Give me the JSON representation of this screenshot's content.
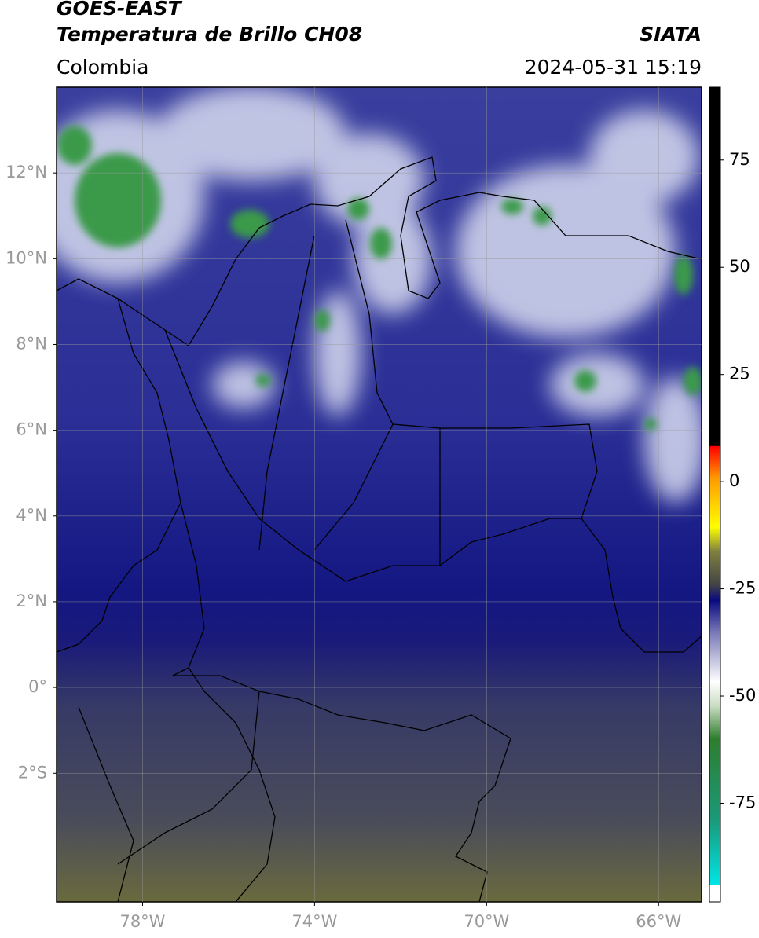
{
  "header": {
    "satellite": "GOES-EAST",
    "product": "Temperatura de Brillo CH08",
    "source": "SIATA",
    "region": "Colombia",
    "timestamp": "2024-05-31 15:19"
  },
  "map": {
    "lon_range": [
      -80,
      -65
    ],
    "lat_range": [
      -5,
      14
    ],
    "grid": true,
    "lon_ticks": [
      {
        "value": -78,
        "label": "78°W"
      },
      {
        "value": -74,
        "label": "74°W"
      },
      {
        "value": -70,
        "label": "70°W"
      },
      {
        "value": -66,
        "label": "66°W"
      }
    ],
    "lat_ticks": [
      {
        "value": 12,
        "label": "12°N"
      },
      {
        "value": 10,
        "label": "10°N"
      },
      {
        "value": 8,
        "label": "8°N"
      },
      {
        "value": 6,
        "label": "6°N"
      },
      {
        "value": 4,
        "label": "4°N"
      },
      {
        "value": 2,
        "label": "2°N"
      },
      {
        "value": 0,
        "label": "0°"
      },
      {
        "value": -2,
        "label": "2°S"
      }
    ]
  },
  "colorbar": {
    "range": [
      -98,
      92
    ],
    "ticks": [
      75,
      50,
      25,
      0,
      -25,
      -50,
      -75
    ]
  }
}
